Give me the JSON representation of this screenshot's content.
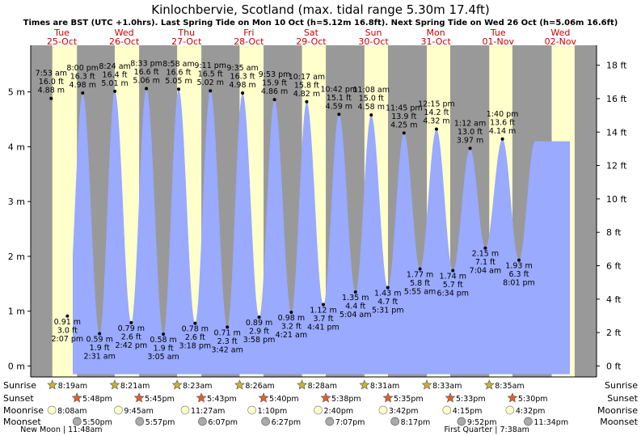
{
  "title": "Kinlochbervie, Scotland (max. tidal range 5.30m 17.4ft)",
  "subtitle": "Times are BST (UTC +1.0hrs). Last Spring Tide on Mon 10 Oct (h=5.12m 16.8ft). Next Spring Tide on Wed 26 Oct (h=5.06m 16.6ft)",
  "colors": {
    "night": "#999999",
    "day": "#ffffcc",
    "tide": "#99aaff",
    "day_label": "#cc0000",
    "sunrise_star": "#c8b040",
    "sunset_star": "#e06030",
    "moonrise": "#ffffcc",
    "moonset": "#aaaaaa"
  },
  "chart_data": {
    "type": "area",
    "ylabel_left_unit": "m",
    "ylabel_right_unit": "ft",
    "ylim_m": [
      -0.2,
      5.85
    ],
    "yticks_m": [
      0,
      1,
      2,
      3,
      4,
      5
    ],
    "yticks_m_labels": [
      "0 m",
      "1 m",
      "2 m",
      "3 m",
      "4 m",
      "5 m"
    ],
    "yticks_ft": [
      0,
      2,
      4,
      6,
      8,
      10,
      12,
      14,
      16,
      18
    ],
    "yticks_ft_labels": [
      "0 ft",
      "2 ft",
      "4 ft",
      "6 ft",
      "8 ft",
      "10 ft",
      "12 ft",
      "14 ft",
      "16 ft",
      "18 ft"
    ],
    "days": [
      {
        "dow": "Tue",
        "date": "25-Oct"
      },
      {
        "dow": "Wed",
        "date": "26-Oct"
      },
      {
        "dow": "Thu",
        "date": "27-Oct"
      },
      {
        "dow": "Fri",
        "date": "28-Oct"
      },
      {
        "dow": "Sat",
        "date": "29-Oct"
      },
      {
        "dow": "Sun",
        "date": "30-Oct"
      },
      {
        "dow": "Mon",
        "date": "31-Oct"
      },
      {
        "dow": "Tue",
        "date": "01-Nov"
      },
      {
        "dow": "Wed",
        "date": "02-Nov"
      }
    ],
    "daylight": [
      {
        "rise": "2022-10-25 08:19",
        "set": "2022-10-25 17:48"
      },
      {
        "rise": "2022-10-26 08:21",
        "set": "2022-10-26 17:45"
      },
      {
        "rise": "2022-10-27 08:23",
        "set": "2022-10-27 17:43"
      },
      {
        "rise": "2022-10-28 08:26",
        "set": "2022-10-28 17:40"
      },
      {
        "rise": "2022-10-29 08:28",
        "set": "2022-10-29 17:38"
      },
      {
        "rise": "2022-10-30 08:31",
        "set": "2022-10-30 17:35"
      },
      {
        "rise": "2022-10-31 08:33",
        "set": "2022-10-31 17:33"
      },
      {
        "rise": "2022-11-01 08:35",
        "set": "2022-11-01 17:30"
      },
      {
        "rise": "2022-11-02 08:37",
        "set": "2022-11-02 17:28"
      }
    ],
    "tides": [
      {
        "t": "2022-10-25 07:53",
        "h": 4.88,
        "type": "high",
        "labels": [
          "7:53 am",
          "16.0 ft",
          "4.88 m"
        ]
      },
      {
        "t": "2022-10-25 14:07",
        "h": 0.91,
        "type": "low",
        "labels": [
          "0.91 m",
          "3.0 ft",
          "2:07 pm"
        ]
      },
      {
        "t": "2022-10-25 20:00",
        "h": 4.98,
        "type": "high",
        "labels": [
          "8:00 pm",
          "16.3 ft",
          "4.98 m"
        ]
      },
      {
        "t": "2022-10-26 02:31",
        "h": 0.59,
        "type": "low",
        "labels": [
          "0.59 m",
          "1.9 ft",
          "2:31 am"
        ]
      },
      {
        "t": "2022-10-26 08:24",
        "h": 5.01,
        "type": "high",
        "labels": [
          "8:24 am",
          "16.4 ft",
          "5.01 m"
        ]
      },
      {
        "t": "2022-10-26 14:42",
        "h": 0.79,
        "type": "low",
        "labels": [
          "0.79 m",
          "2.6 ft",
          "2:42 pm"
        ]
      },
      {
        "t": "2022-10-26 20:33",
        "h": 5.06,
        "type": "high",
        "labels": [
          "8:33 pm",
          "16.6 ft",
          "5.06 m"
        ]
      },
      {
        "t": "2022-10-27 03:05",
        "h": 0.58,
        "type": "low",
        "labels": [
          "0.58 m",
          "1.9 ft",
          "3:05 am"
        ]
      },
      {
        "t": "2022-10-27 08:58",
        "h": 5.05,
        "type": "high",
        "labels": [
          "8:58 am",
          "16.6 ft",
          "5.05 m"
        ]
      },
      {
        "t": "2022-10-27 15:18",
        "h": 0.78,
        "type": "low",
        "labels": [
          "0.78 m",
          "2.6 ft",
          "3:18 pm"
        ]
      },
      {
        "t": "2022-10-27 21:11",
        "h": 5.02,
        "type": "high",
        "labels": [
          "9:11 pm",
          "16.5 ft",
          "5.02 m"
        ]
      },
      {
        "t": "2022-10-28 03:42",
        "h": 0.71,
        "type": "low",
        "labels": [
          "0.71 m",
          "2.3 ft",
          "3:42 am"
        ]
      },
      {
        "t": "2022-10-28 09:35",
        "h": 4.98,
        "type": "high",
        "labels": [
          "9:35 am",
          "16.3 ft",
          "4.98 m"
        ]
      },
      {
        "t": "2022-10-28 15:58",
        "h": 0.89,
        "type": "low",
        "labels": [
          "0.89 m",
          "2.9 ft",
          "3:58 pm"
        ]
      },
      {
        "t": "2022-10-28 21:53",
        "h": 4.86,
        "type": "high",
        "labels": [
          "9:53 pm",
          "15.9 ft",
          "4.86 m"
        ]
      },
      {
        "t": "2022-10-29 04:21",
        "h": 0.98,
        "type": "low",
        "labels": [
          "0.98 m",
          "3.2 ft",
          "4:21 am"
        ]
      },
      {
        "t": "2022-10-29 10:17",
        "h": 4.82,
        "type": "high",
        "labels": [
          "10:17 am",
          "15.8 ft",
          "4.82 m"
        ]
      },
      {
        "t": "2022-10-29 16:41",
        "h": 1.12,
        "type": "low",
        "labels": [
          "1.12 m",
          "3.7 ft",
          "4:41 pm"
        ]
      },
      {
        "t": "2022-10-29 22:42",
        "h": 4.59,
        "type": "high",
        "labels": [
          "10:42 pm",
          "15.1 ft",
          "4.59 m"
        ]
      },
      {
        "t": "2022-10-30 05:04",
        "h": 1.35,
        "type": "low",
        "labels": [
          "1.35 m",
          "4.4 ft",
          "5:04 am"
        ]
      },
      {
        "t": "2022-10-30 11:08",
        "h": 4.58,
        "type": "high",
        "labels": [
          "11:08 am",
          "15.0 ft",
          "4.58 m"
        ]
      },
      {
        "t": "2022-10-30 17:31",
        "h": 1.43,
        "type": "low",
        "labels": [
          "1.43 m",
          "4.7 ft",
          "5:31 pm"
        ]
      },
      {
        "t": "2022-10-30 23:45",
        "h": 4.25,
        "type": "high",
        "labels": [
          "11:45 pm",
          "13.9 ft",
          "4.25 m"
        ]
      },
      {
        "t": "2022-10-31 05:55",
        "h": 1.77,
        "type": "low",
        "labels": [
          "1.77 m",
          "5.8 ft",
          "5:55 am"
        ]
      },
      {
        "t": "2022-10-31 12:15",
        "h": 4.32,
        "type": "high",
        "labels": [
          "12:15 pm",
          "14.2 ft",
          "4.32 m"
        ]
      },
      {
        "t": "2022-10-31 18:34",
        "h": 1.74,
        "type": "low",
        "labels": [
          "1.74 m",
          "5.7 ft",
          "6:34 pm"
        ]
      },
      {
        "t": "2022-11-01 01:12",
        "h": 3.97,
        "type": "high",
        "labels": [
          "1:12 am",
          "13.0 ft",
          "3.97 m"
        ]
      },
      {
        "t": "2022-11-01 07:04",
        "h": 2.15,
        "type": "low",
        "labels": [
          "2.15 m",
          "7.1 ft",
          "7:04 am"
        ]
      },
      {
        "t": "2022-11-01 13:40",
        "h": 4.14,
        "type": "high",
        "labels": [
          "1:40 pm",
          "13.6 ft",
          "4.14 m"
        ]
      },
      {
        "t": "2022-11-01 20:01",
        "h": 1.93,
        "type": "low",
        "labels": [
          "1.93 m",
          "6.3 ft",
          "8:01 pm"
        ]
      }
    ],
    "astro_rows": [
      "Sunrise",
      "Sunset",
      "Moonrise",
      "Moonset"
    ],
    "sunrise": [
      {
        "t": "2022-10-25 08:19",
        "label": "8:19am"
      },
      {
        "t": "2022-10-26 08:21",
        "label": "8:21am"
      },
      {
        "t": "2022-10-27 08:23",
        "label": "8:23am"
      },
      {
        "t": "2022-10-28 08:26",
        "label": "8:26am"
      },
      {
        "t": "2022-10-29 08:28",
        "label": "8:28am"
      },
      {
        "t": "2022-10-30 08:31",
        "label": "8:31am"
      },
      {
        "t": "2022-10-31 08:33",
        "label": "8:33am"
      },
      {
        "t": "2022-11-01 08:35",
        "label": "8:35am"
      }
    ],
    "sunset": [
      {
        "t": "2022-10-25 17:48",
        "label": "5:48pm"
      },
      {
        "t": "2022-10-26 17:45",
        "label": "5:45pm"
      },
      {
        "t": "2022-10-27 17:43",
        "label": "5:43pm"
      },
      {
        "t": "2022-10-28 17:40",
        "label": "5:40pm"
      },
      {
        "t": "2022-10-29 17:38",
        "label": "5:38pm"
      },
      {
        "t": "2022-10-30 17:35",
        "label": "5:35pm"
      },
      {
        "t": "2022-10-31 17:33",
        "label": "5:33pm"
      },
      {
        "t": "2022-11-01 17:30",
        "label": "5:30pm"
      }
    ],
    "moonrise": [
      {
        "t": "2022-10-25 08:08",
        "label": "8:08am"
      },
      {
        "t": "2022-10-26 09:45",
        "label": "9:45am"
      },
      {
        "t": "2022-10-27 11:27",
        "label": "11:27am"
      },
      {
        "t": "2022-10-28 13:10",
        "label": "1:10pm"
      },
      {
        "t": "2022-10-29 14:40",
        "label": "2:40pm"
      },
      {
        "t": "2022-10-30 15:42",
        "label": "3:42pm"
      },
      {
        "t": "2022-10-31 16:15",
        "label": "4:15pm"
      },
      {
        "t": "2022-11-01 16:32",
        "label": "4:32pm"
      }
    ],
    "moonset": [
      {
        "t": "2022-10-25 17:50",
        "label": "5:50pm"
      },
      {
        "t": "2022-10-26 17:57",
        "label": "5:57pm"
      },
      {
        "t": "2022-10-27 18:07",
        "label": "6:07pm"
      },
      {
        "t": "2022-10-28 18:27",
        "label": "6:27pm"
      },
      {
        "t": "2022-10-29 19:07",
        "label": "7:07pm"
      },
      {
        "t": "2022-10-30 20:17",
        "label": "8:17pm"
      },
      {
        "t": "2022-10-31 21:52",
        "label": "9:52pm"
      },
      {
        "t": "2022-11-01 23:34",
        "label": "11:34pm"
      }
    ],
    "moon_phases": [
      {
        "t": "2022-10-25 11:48",
        "label": "New Moon | 11:48am"
      },
      {
        "t": "2022-11-01 07:38",
        "label": "First Quarter | 7:38am"
      }
    ]
  }
}
